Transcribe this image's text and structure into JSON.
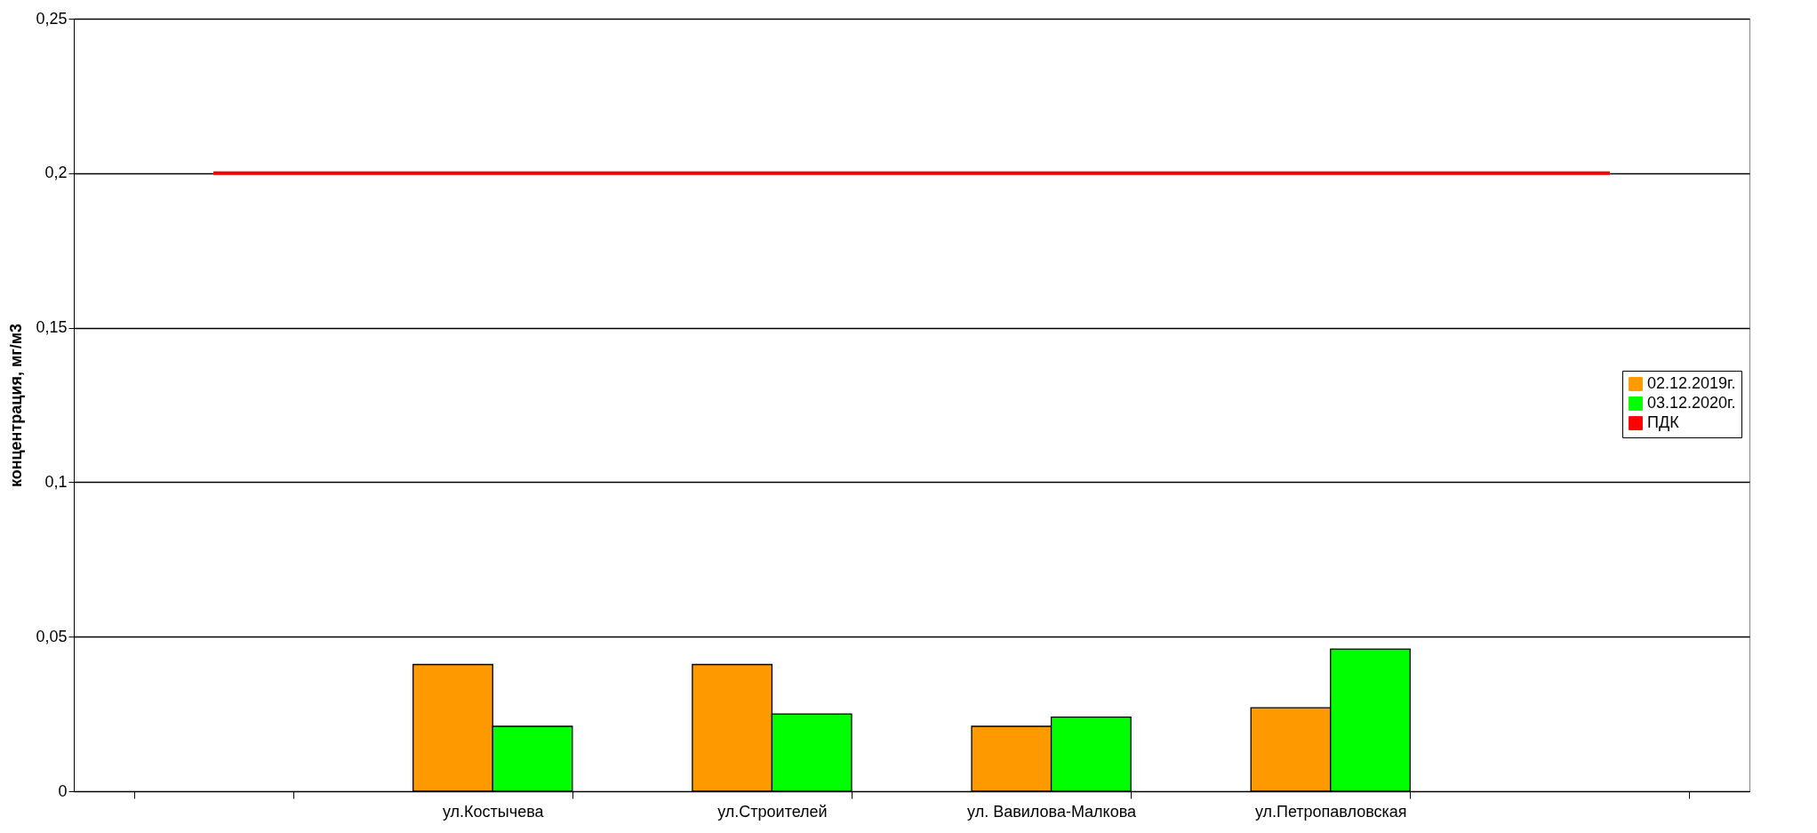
{
  "chart_data": {
    "type": "bar",
    "ylabel": "концентрация, мг/м3",
    "categories": [
      null,
      "ул.Костычева",
      "ул.Строителей",
      "ул. Вавилова-Малкова",
      "ул.Петропавловская",
      null
    ],
    "series": [
      {
        "name": "02.12.2019г.",
        "color": "#ff9900",
        "values": [
          null,
          0.041,
          0.041,
          0.021,
          0.027,
          null
        ]
      },
      {
        "name": "03.12.2020г.",
        "color": "#00ff00",
        "values": [
          null,
          0.021,
          0.025,
          0.024,
          0.046,
          null
        ]
      },
      {
        "name": "ПДК",
        "type": "line",
        "color": "#ff0000",
        "values": [
          0.2,
          0.2,
          0.2,
          0.2,
          0.2,
          0.2
        ]
      }
    ],
    "ylim": [
      0,
      0.25
    ],
    "yticks": [
      0,
      {
        "value": 0.05,
        "label": "0,05"
      },
      {
        "value": 0.1,
        "label": "0,1"
      },
      {
        "value": 0.15,
        "label": "0,15"
      },
      {
        "value": 0.2,
        "label": "0,2"
      },
      {
        "value": 0.25,
        "label": "0,25"
      }
    ],
    "grid": "y",
    "legend": "right"
  }
}
